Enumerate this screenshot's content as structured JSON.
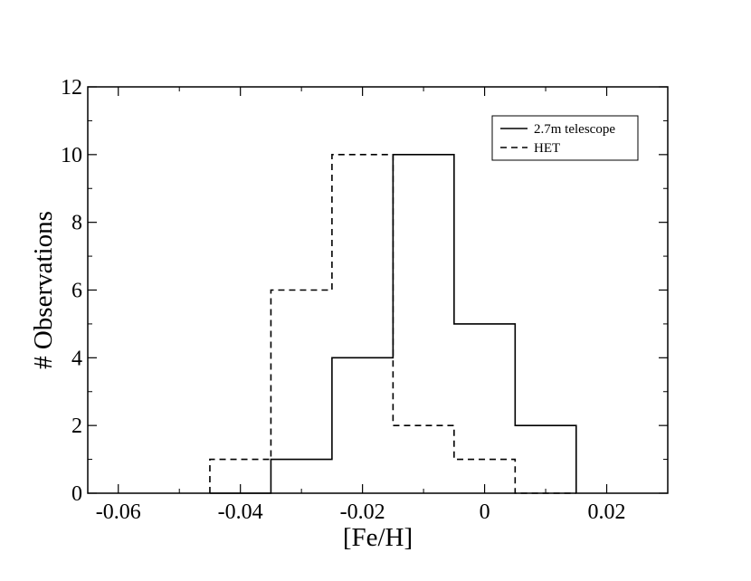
{
  "chart_data": {
    "type": "histogram-step",
    "xlabel": "[Fe/H]",
    "ylabel": "# Observations",
    "xlim": [
      -0.065,
      0.03
    ],
    "ylim": [
      0,
      12
    ],
    "x_ticks": [
      -0.06,
      -0.04,
      -0.02,
      0,
      0.02
    ],
    "x_tick_labels": [
      "-0.06",
      "-0.04",
      "-0.02",
      "0",
      "0.02"
    ],
    "y_ticks": [
      0,
      2,
      4,
      6,
      8,
      10,
      12
    ],
    "y_tick_labels": [
      "0",
      "2",
      "4",
      "6",
      "8",
      "10",
      "12"
    ],
    "bin_edges": [
      -0.045,
      -0.035,
      -0.025,
      -0.015,
      -0.005,
      0.005,
      0.015
    ],
    "series": [
      {
        "name": "2.7m telescope",
        "style": "solid",
        "color": "#000000",
        "counts": [
          0,
          1,
          4,
          10,
          5,
          2
        ]
      },
      {
        "name": "HET",
        "style": "dashed",
        "color": "#000000",
        "counts": [
          1,
          6,
          10,
          2,
          1,
          0
        ]
      }
    ],
    "legend_position": "top-right",
    "grid": false
  }
}
